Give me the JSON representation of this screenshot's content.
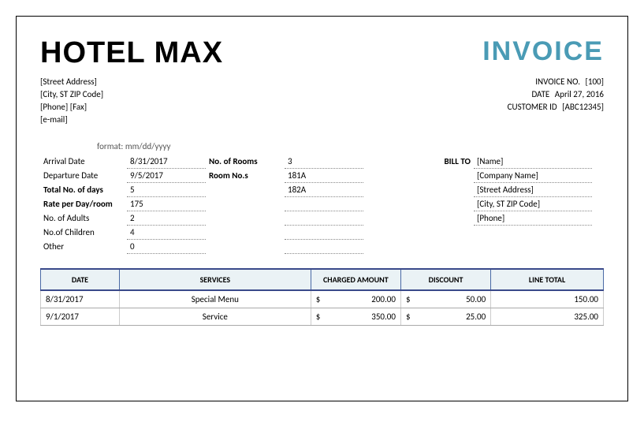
{
  "header": {
    "hotel_name": "HOTEL MAX",
    "invoice_title": "INVOICE",
    "title_color": "#4a9bb5"
  },
  "address": {
    "street": "[Street Address]",
    "city": "[City, ST  ZIP Code]",
    "phonefax": "[Phone] [Fax]",
    "email": "[e-mail]"
  },
  "invoice_meta": {
    "invoice_no_label": "INVOICE NO.",
    "invoice_no": "[100]",
    "date_label": "DATE",
    "date": "April 27, 2016",
    "customer_id_label": "CUSTOMER ID",
    "customer_id": "[ABC12345]"
  },
  "format_note": "format: mm/dd/yyyy",
  "stay": {
    "arrival_label": "Arrival Date",
    "arrival": "8/31/2017",
    "departure_label": "Departure Date",
    "departure": "9/5/2017",
    "total_days_label": "Total No. of days",
    "total_days": "5",
    "rate_label": "Rate per Day/room",
    "rate": "175",
    "adults_label": "No. of Adults",
    "adults": "2",
    "children_label": "No.of Children",
    "children": "4",
    "other_label": "Other",
    "other": "0",
    "rooms_label": "No. of Rooms",
    "rooms": "3",
    "room_nos_label": "Room No.s",
    "room_no1": "181A",
    "room_no2": "182A"
  },
  "billto": {
    "label": "BILL TO",
    "name": "[Name]",
    "company": "[Company Name]",
    "street": "[Street Address]",
    "city": "[City, ST  ZIP Code]",
    "phone": "[Phone]"
  },
  "table": {
    "headers": {
      "date": "DATE",
      "services": "SERVICES",
      "charged": "CHARGED AMOUNT",
      "discount": "DISCOUNT",
      "line_total": "LINE TOTAL"
    },
    "header_bg": "#eaf2f5",
    "border_color": "#3a4a8a",
    "currency": "$",
    "rows": [
      {
        "date": "8/31/2017",
        "service": "Special Menu",
        "amount": "200.00",
        "discount": "50.00",
        "total": "150.00"
      },
      {
        "date": "9/1/2017",
        "service": "Service",
        "amount": "350.00",
        "discount": "25.00",
        "total": "325.00"
      }
    ]
  }
}
